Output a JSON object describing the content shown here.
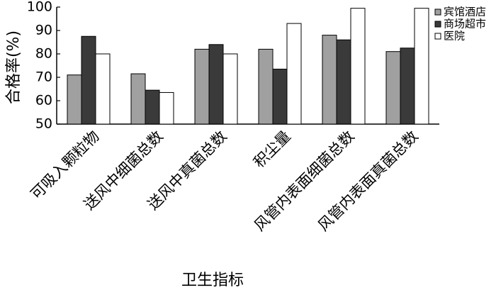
{
  "chart_data": {
    "type": "bar",
    "x_label": "卫生指标",
    "y_label": "合格率(%)",
    "categories": [
      "可吸入颗粒物",
      "送风中细菌总数",
      "送风中真菌总数",
      "积尘量",
      "风管内表面细菌总数",
      "风管内表面真菌总数"
    ],
    "series": [
      {
        "name": "宾馆酒店",
        "color": "#a0a0a0",
        "values": [
          71,
          71.5,
          82,
          82,
          88,
          81
        ]
      },
      {
        "name": "商场超市",
        "color": "#3a3a3a",
        "values": [
          87.5,
          64.5,
          84,
          73.5,
          86,
          82.5
        ]
      },
      {
        "name": "医院",
        "color": "#ffffff",
        "values": [
          80,
          63.5,
          80,
          93,
          99.5,
          99.5
        ]
      }
    ],
    "ylim": [
      50,
      100
    ],
    "yticks": [
      50,
      60,
      70,
      80,
      90,
      100
    ],
    "grid": false,
    "legend": "top-right"
  }
}
